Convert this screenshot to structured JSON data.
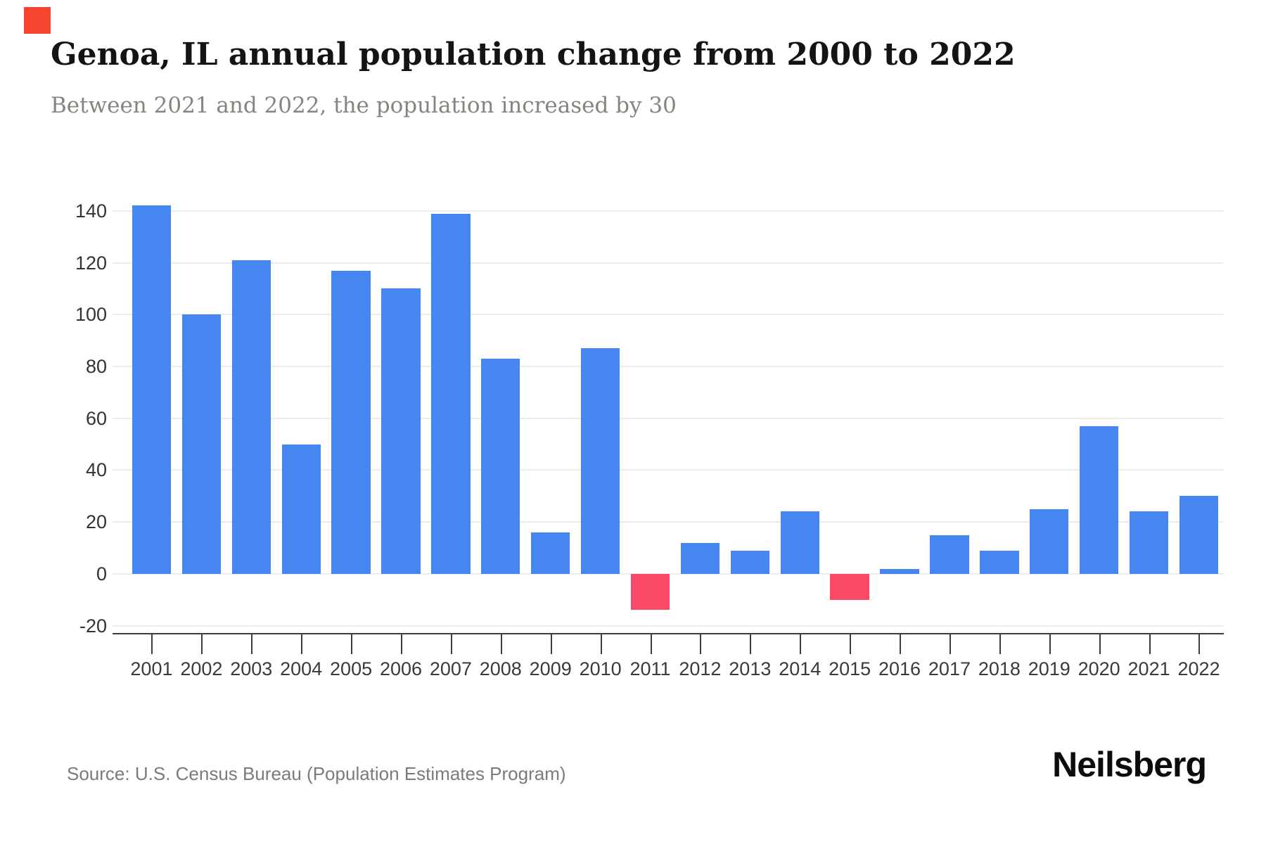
{
  "header": {
    "title": "Genoa, IL annual population change from 2000 to 2022",
    "subtitle": "Between 2021 and 2022, the population increased by 30"
  },
  "footer": {
    "source": "Source: U.S. Census Bureau (Population Estimates Program)",
    "brand": "Neilsberg"
  },
  "colors": {
    "bar_positive": "#4586f0",
    "bar_negative": "#fa4a68",
    "brand_square": "#f5452f",
    "gridline": "#ececec",
    "axis": "#3d3d3d",
    "axis_label": "#333333",
    "title": "#141414",
    "subtitle": "#87847f",
    "source": "#7b7b7b"
  },
  "chart_data": {
    "type": "bar",
    "title": "Genoa, IL annual population change from 2000 to 2022",
    "subtitle": "Between 2021 and 2022, the population increased by 30",
    "categories": [
      "2001",
      "2002",
      "2003",
      "2004",
      "2005",
      "2006",
      "2007",
      "2008",
      "2009",
      "2010",
      "2011",
      "2012",
      "2013",
      "2014",
      "2015",
      "2016",
      "2017",
      "2018",
      "2019",
      "2020",
      "2021",
      "2022"
    ],
    "values": [
      142,
      100,
      121,
      50,
      117,
      110,
      139,
      83,
      16,
      87,
      -14,
      12,
      9,
      24,
      -10,
      2,
      15,
      9,
      25,
      57,
      24,
      30
    ],
    "xlabel": "",
    "ylabel": "",
    "ylim": [
      -20,
      140
    ],
    "yticks": [
      -20,
      0,
      20,
      40,
      60,
      80,
      100,
      120,
      140
    ],
    "grid": "horizontal",
    "legend": "none",
    "positive_color": "#4586f0",
    "negative_color": "#fa4a68"
  }
}
